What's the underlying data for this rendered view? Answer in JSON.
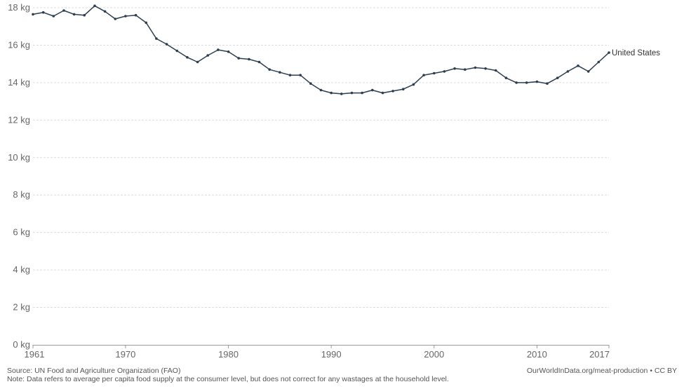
{
  "chart_data": {
    "type": "line",
    "title": "",
    "xlabel": "",
    "ylabel": "",
    "xlim": [
      1961,
      2017
    ],
    "ylim": [
      0,
      18
    ],
    "grid": "horizontal dashed",
    "y_unit_suffix": " kg",
    "y_ticks": [
      0,
      2,
      4,
      6,
      8,
      10,
      12,
      14,
      16,
      18
    ],
    "y_tick_labels": [
      "0 kg",
      "2 kg",
      "4 kg",
      "6 kg",
      "8 kg",
      "10 kg",
      "12 kg",
      "14 kg",
      "16 kg",
      "18 kg"
    ],
    "x_ticks": [
      1961,
      1970,
      1980,
      1990,
      2000,
      2010,
      2017
    ],
    "x_tick_labels": [
      "1961",
      "1970",
      "1980",
      "1990",
      "2000",
      "2010",
      "2017"
    ],
    "line_color": "#2c3e50",
    "series": [
      {
        "name": "United States",
        "x": [
          1961,
          1962,
          1963,
          1964,
          1965,
          1966,
          1967,
          1968,
          1969,
          1970,
          1971,
          1972,
          1973,
          1974,
          1975,
          1976,
          1977,
          1978,
          1979,
          1980,
          1981,
          1982,
          1983,
          1984,
          1985,
          1986,
          1987,
          1988,
          1989,
          1990,
          1991,
          1992,
          1993,
          1994,
          1995,
          1996,
          1997,
          1998,
          1999,
          2000,
          2001,
          2002,
          2003,
          2004,
          2005,
          2006,
          2007,
          2008,
          2009,
          2010,
          2011,
          2012,
          2013,
          2014,
          2015,
          2016,
          2017
        ],
        "values": [
          17.65,
          17.75,
          17.55,
          17.85,
          17.65,
          17.6,
          18.1,
          17.8,
          17.4,
          17.55,
          17.6,
          17.2,
          16.35,
          16.05,
          15.7,
          15.35,
          15.1,
          15.45,
          15.75,
          15.65,
          15.3,
          15.25,
          15.1,
          14.7,
          14.55,
          14.4,
          14.4,
          13.95,
          13.6,
          13.45,
          13.4,
          13.45,
          13.45,
          13.6,
          13.45,
          13.55,
          13.65,
          13.9,
          14.4,
          14.5,
          14.6,
          14.75,
          14.7,
          14.8,
          14.75,
          14.65,
          14.25,
          14.0,
          14.0,
          14.05,
          13.95,
          14.25,
          14.6,
          14.9,
          14.6,
          15.1,
          15.6
        ]
      }
    ]
  },
  "footer": {
    "source": "Source: UN Food and Agriculture Organization (FAO)",
    "note": "Note: Data refers to average per capita food supply at the consumer level, but does not correct for any wastages at the household level.",
    "attribution": "OurWorldInData.org/meat-production • CC BY"
  }
}
